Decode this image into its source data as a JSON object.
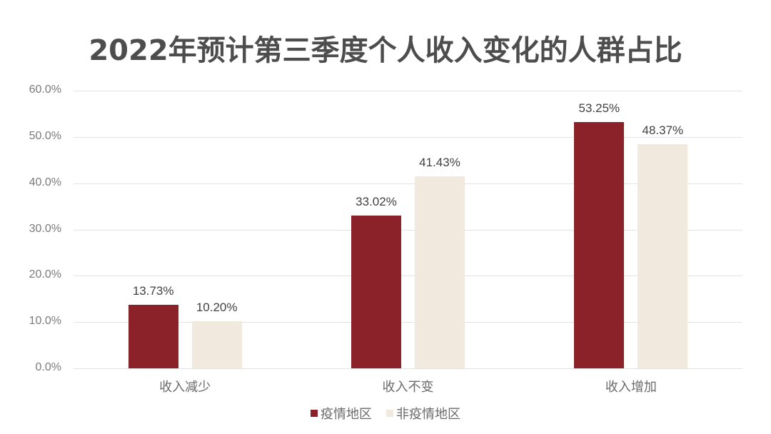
{
  "title": "2022年预计第三季度个人收入变化的人群占比",
  "colors": {
    "series_0": "#8b2229",
    "series_1": "#f1e9de"
  },
  "legend": [
    {
      "label": "疫情地区",
      "color": "#8b2229"
    },
    {
      "label": "非疫情地区",
      "color": "#f1e9de"
    }
  ],
  "y_ticks": [
    "0.0%",
    "10.0%",
    "20.0%",
    "30.0%",
    "40.0%",
    "50.0%",
    "60.0%"
  ],
  "categories": [
    "收入减少",
    "收入不变",
    "收入增加"
  ],
  "labels": {
    "s0": [
      "13.73%",
      "33.02%",
      "53.25%"
    ],
    "s1": [
      "10.20%",
      "41.43%",
      "48.37%"
    ]
  },
  "chart_data": {
    "type": "bar",
    "title": "2022年预计第三季度个人收入变化的人群占比",
    "categories": [
      "收入减少",
      "收入不变",
      "收入增加"
    ],
    "series": [
      {
        "name": "疫情地区",
        "values": [
          13.73,
          33.02,
          53.25
        ],
        "color": "#8b2229"
      },
      {
        "name": "非疫情地区",
        "values": [
          10.2,
          41.43,
          48.37
        ],
        "color": "#f1e9de"
      }
    ],
    "xlabel": "",
    "ylabel": "",
    "ylim": [
      0,
      60
    ],
    "y_tick_step": 10,
    "y_format": "percent_1dp",
    "grid": true,
    "legend_position": "bottom",
    "data_labels": true
  }
}
